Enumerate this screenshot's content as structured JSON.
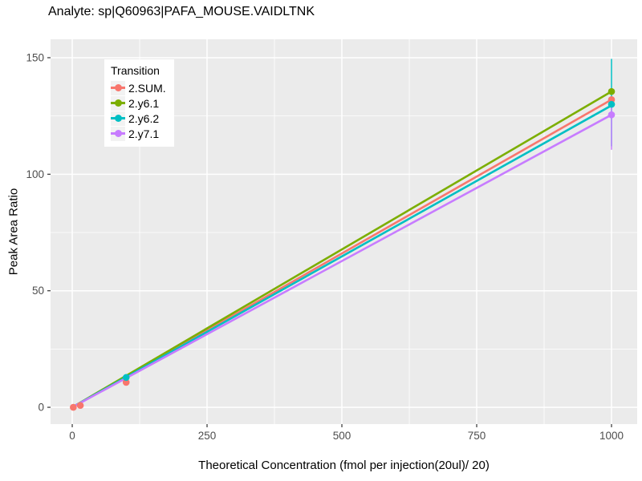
{
  "figure": {
    "title": "Analyte: sp|Q60963|PAFA_MOUSE.VAIDLTNK",
    "x_axis_label": "Theoretical Concentration (fmol per injection(20ul)/ 20)",
    "y_axis_label": "Peak Area Ratio"
  },
  "legend": {
    "title": "Transition",
    "entries": [
      {
        "label": "2.SUM.",
        "color": "#F8766D"
      },
      {
        "label": "2.y6.1",
        "color": "#7CAE00"
      },
      {
        "label": "2.y6.2",
        "color": "#00BFC4"
      },
      {
        "label": "2.y7.1",
        "color": "#C77CFF"
      }
    ]
  },
  "colors": {
    "figure_background": "#FFFFFF",
    "panel_background": "#EBEBEB",
    "gridline": "#FFFFFF",
    "axis_text": "#4D4D4D",
    "tick_mark": "#333333",
    "legend_key_background": "#F2F2F2"
  },
  "chart_data": {
    "type": "line",
    "title": "Analyte: sp|Q60963|PAFA_MOUSE.VAIDLTNK",
    "xlabel": "Theoretical Concentration (fmol per injection(20ul)/ 20)",
    "ylabel": "Peak Area Ratio",
    "legend_title": "Transition",
    "legend_position": "top-left-inside",
    "grid": true,
    "xlim": [
      -40.2,
      1047.6
    ],
    "ylim": [
      -7.2,
      157.9
    ],
    "x_ticks": [
      0,
      250,
      500,
      750,
      1000
    ],
    "y_ticks": [
      0,
      50,
      100,
      150
    ],
    "x_minor_ticks": [
      125,
      375,
      625,
      875
    ],
    "y_minor_ticks": [
      25,
      75,
      125
    ],
    "series": [
      {
        "name": "2.SUM.",
        "color": "#F8766D",
        "line": [
          [
            0,
            0
          ],
          [
            1000,
            132
          ]
        ],
        "points": [
          [
            2,
            0
          ],
          [
            15,
            0.8
          ],
          [
            100,
            10.7
          ],
          [
            1000,
            132
          ]
        ],
        "errorbars": []
      },
      {
        "name": "2.y6.1",
        "color": "#7CAE00",
        "line": [
          [
            0,
            0
          ],
          [
            1000,
            135.5
          ]
        ],
        "points": [
          [
            1000,
            135.5
          ]
        ],
        "errorbars": []
      },
      {
        "name": "2.y6.2",
        "color": "#00BFC4",
        "line": [
          [
            0,
            0
          ],
          [
            1000,
            129.5
          ]
        ],
        "points": [
          [
            100,
            12.8
          ],
          [
            1000,
            130
          ]
        ],
        "errorbars": [
          {
            "x": 1000,
            "ymin": 112,
            "ymax": 149.5
          }
        ]
      },
      {
        "name": "2.y7.1",
        "color": "#C77CFF",
        "line": [
          [
            0,
            0
          ],
          [
            1000,
            125.5
          ]
        ],
        "points": [
          [
            1000,
            125.5
          ]
        ],
        "errorbars": [
          {
            "x": 1000,
            "ymin": 110.5,
            "ymax": 130
          }
        ]
      }
    ]
  }
}
